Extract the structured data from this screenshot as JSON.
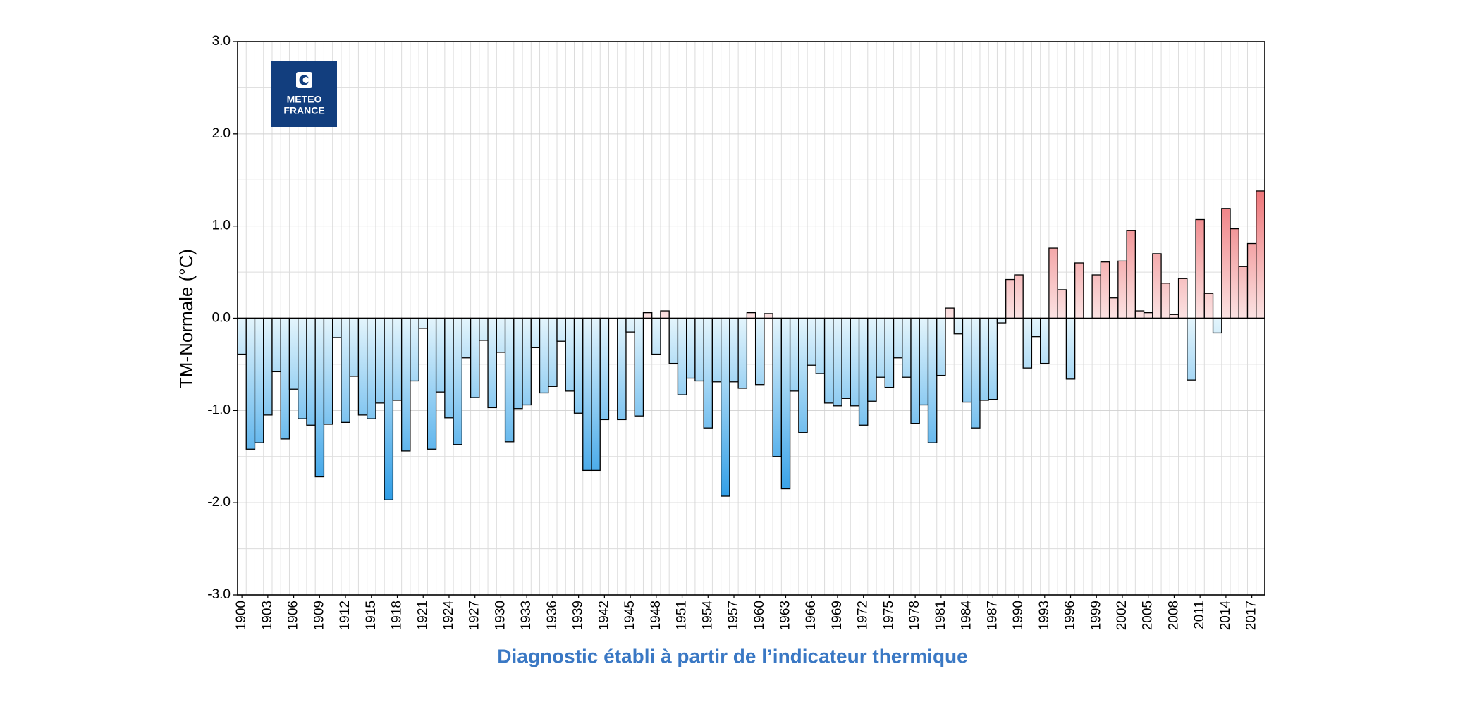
{
  "chart_data": {
    "type": "bar",
    "caption": "Diagnostic établi à partir de l’indicateur thermique",
    "ylabel": "TM-Normale (°C)",
    "logo": {
      "line1": "METEO",
      "line2": "FRANCE"
    },
    "categories": [
      "1900",
      null,
      null,
      "1903",
      null,
      null,
      "1906",
      null,
      null,
      "1909",
      null,
      null,
      "1912",
      null,
      null,
      "1915",
      null,
      null,
      "1918",
      null,
      null,
      "1921",
      null,
      null,
      "1924",
      null,
      null,
      "1927",
      null,
      null,
      "1930",
      null,
      null,
      "1933",
      null,
      null,
      "1936",
      null,
      null,
      "1939",
      null,
      null,
      "1942",
      null,
      null,
      "1945",
      null,
      null,
      "1948",
      null,
      null,
      "1951",
      null,
      null,
      "1954",
      null,
      null,
      "1957",
      null,
      null,
      "1960",
      null,
      null,
      "1963",
      null,
      null,
      "1966",
      null,
      null,
      "1969",
      null,
      null,
      "1972",
      null,
      null,
      "1975",
      null,
      null,
      "1978",
      null,
      null,
      "1981",
      null,
      null,
      "1984",
      null,
      null,
      "1987",
      null,
      null,
      "1990",
      null,
      null,
      "1993",
      null,
      null,
      "1996",
      null,
      null,
      "1999",
      null,
      null,
      "2002",
      null,
      null,
      "2005",
      null,
      null,
      "2008",
      null,
      null,
      "2011",
      null,
      null,
      "2014",
      null,
      null,
      "2017",
      null
    ],
    "values": [
      -0.39,
      -1.42,
      -1.35,
      -1.05,
      -0.58,
      -1.31,
      -0.77,
      -1.09,
      -1.16,
      -1.72,
      -1.15,
      -0.21,
      -1.13,
      -0.63,
      -1.05,
      -1.09,
      -0.92,
      -1.97,
      -0.89,
      -1.44,
      -0.68,
      -0.11,
      -1.42,
      -0.8,
      -1.08,
      -1.37,
      -0.43,
      -0.86,
      -0.24,
      -0.97,
      -0.37,
      -1.34,
      -0.98,
      -0.94,
      -0.32,
      -0.81,
      -0.74,
      -0.25,
      -0.79,
      -1.03,
      -1.65,
      -1.65,
      -1.1,
      0,
      -1.1,
      -0.15,
      -1.06,
      0.06,
      -0.39,
      0.08,
      -0.49,
      -0.83,
      -0.65,
      -0.68,
      -1.19,
      -0.69,
      -1.93,
      -0.69,
      -0.76,
      0.06,
      -0.72,
      0.05,
      -1.5,
      -1.85,
      -0.79,
      -1.24,
      -0.51,
      -0.6,
      -0.92,
      -0.95,
      -0.87,
      -0.95,
      -1.16,
      -0.9,
      -0.64,
      -0.75,
      -0.43,
      -0.64,
      -1.14,
      -0.94,
      -1.35,
      -0.62,
      0.11,
      -0.17,
      -0.91,
      -1.19,
      -0.89,
      -0.88,
      -0.05,
      0.42,
      0.47,
      -0.54,
      -0.2,
      -0.49,
      0.76,
      0.31,
      -0.66,
      0.6,
      0,
      0.47,
      0.61,
      0.22,
      0.62,
      0.95,
      0.08,
      0.06,
      0.7,
      0.38,
      0.04,
      0.43,
      -0.67,
      1.07,
      0.27,
      -0.16,
      1.19,
      0.97,
      0.56,
      0.81,
      1.38
    ],
    "colors": {
      "negative": "#2c9ce6",
      "positive": "#e8464b"
    },
    "ylim": [
      -3,
      3
    ],
    "yticks": [
      {
        "value": -3,
        "label": "-3.0"
      },
      {
        "value": -2,
        "label": "-2.0"
      },
      {
        "value": -1,
        "label": "-1.0"
      },
      {
        "value": 0,
        "label": "0.0"
      },
      {
        "value": 1,
        "label": "1.0"
      },
      {
        "value": 2,
        "label": "2.0"
      },
      {
        "value": 3,
        "label": "3.0"
      }
    ],
    "yminorticks": [
      -2.5,
      -1.5,
      -0.5,
      0.5,
      1.5,
      2.5
    ],
    "grid": true
  }
}
